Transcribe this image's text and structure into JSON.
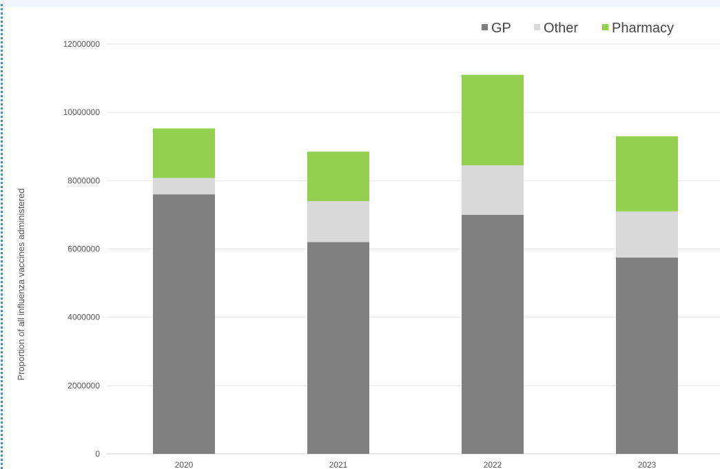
{
  "chart_data": {
    "type": "bar",
    "stacked": true,
    "categories": [
      "2020",
      "2021",
      "2022",
      "2023"
    ],
    "series": [
      {
        "name": "GP",
        "color": "#7f7f7f",
        "values": [
          7600000,
          6200000,
          7000000,
          5750000
        ]
      },
      {
        "name": "Other",
        "color": "#d9d9d9",
        "values": [
          480000,
          1200000,
          1450000,
          1350000
        ]
      },
      {
        "name": "Pharmacy",
        "color": "#92d050",
        "values": [
          1450000,
          1450000,
          2650000,
          2200000
        ]
      }
    ],
    "title": "",
    "xlabel": "",
    "ylabel": "Proportion of all influenza vaccines administered",
    "ylim": [
      0,
      12000000
    ],
    "yticks": [
      0,
      2000000,
      4000000,
      6000000,
      8000000,
      10000000,
      12000000
    ],
    "ytick_labels": [
      "0",
      "2000000",
      "4000000",
      "6000000",
      "8000000",
      "10000000",
      "12000000"
    ],
    "grid": true,
    "legend_position": "top-right"
  }
}
